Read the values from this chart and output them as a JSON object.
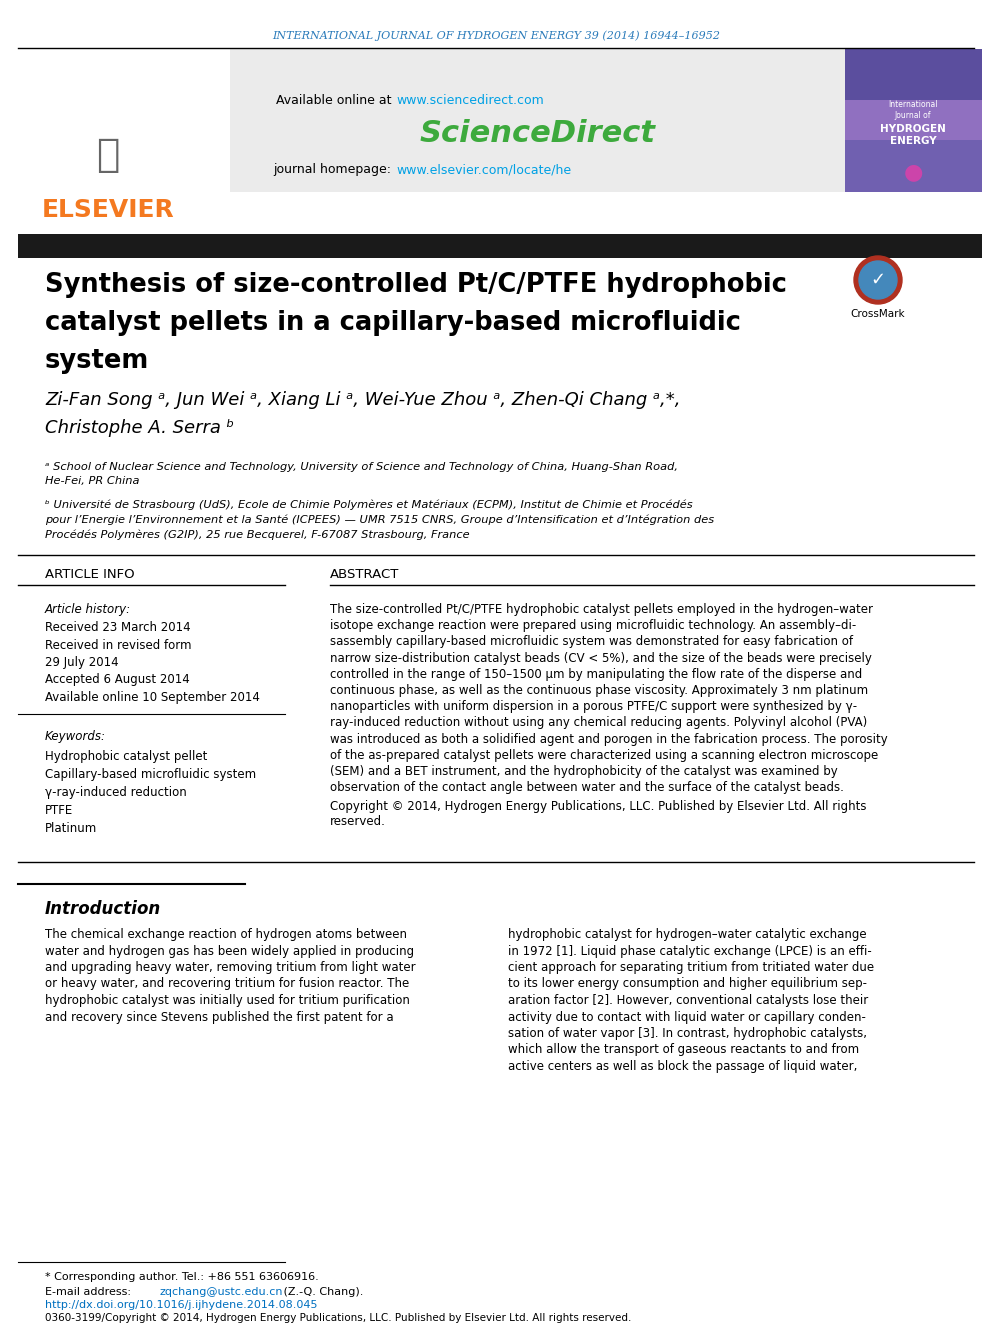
{
  "journal_header": "INTERNATIONAL JOURNAL OF HYDROGEN ENERGY 39 (2014) 16944–16952",
  "journal_header_color": "#2b7bba",
  "sciencedirect_url_color": "#00a0e4",
  "journal_homepage_url_color": "#00a0e4",
  "elsevier_color": "#f47920",
  "article_info_header": "ARTICLE INFO",
  "abstract_header": "ABSTRACT",
  "article_history_label": "Article history:",
  "received1": "Received 23 March 2014",
  "accepted": "Accepted 6 August 2014",
  "available": "Available online 10 September 2014",
  "keywords_label": "Keywords:",
  "keywords": [
    "Hydrophobic catalyst pellet",
    "Capillary-based microfluidic system",
    "γ-ray-induced reduction",
    "PTFE",
    "Platinum"
  ],
  "copyright": "Copyright © 2014, Hydrogen Energy Publications, LLC. Published by Elsevier Ltd. All rights\nreserved.",
  "intro_header": "Introduction",
  "footnote_corresponding": "* Corresponding author. Tel.: +86 551 63606916.",
  "footnote_email": "zqchang@ustc.edu.cn",
  "footnote_email_name": " (Z.-Q. Chang).",
  "footnote_doi_url": "http://dx.doi.org/10.1016/j.ijhydene.2014.08.045",
  "footnote_issn": "0360-3199/Copyright © 2014, Hydrogen Energy Publications, LLC. Published by Elsevier Ltd. All rights reserved.",
  "affiliation_a": "ᵃ School of Nuclear Science and Technology, University of Science and Technology of China, Huang-Shan Road,\nHe-Fei, PR China",
  "affiliation_b": "ᵇ Université de Strasbourg (UdS), Ecole de Chimie Polymères et Matériaux (ECPM), Institut de Chimie et Procédés\npour l’Energie l’Environnement et la Santé (ICPEES) — UMR 7515 CNRS, Groupe d’Intensification et d’Intégration des\nProcédés Polymères (G2IP), 25 rue Becquerel, F-67087 Strasbourg, France",
  "link_color": "#0070c0",
  "header_bar_color": "#1a1a1a",
  "background": "#ffffff",
  "abstract_lines": [
    "The size-controlled Pt/C/PTFE hydrophobic catalyst pellets employed in the hydrogen–water",
    "isotope exchange reaction were prepared using microfluidic technology. An assembly–di-",
    "sassembly capillary-based microfluidic system was demonstrated for easy fabrication of",
    "narrow size-distribution catalyst beads (CV < 5%), and the size of the beads were precisely",
    "controlled in the range of 150–1500 μm by manipulating the flow rate of the disperse and",
    "continuous phase, as well as the continuous phase viscosity. Approximately 3 nm platinum",
    "nanoparticles with uniform dispersion in a porous PTFE/C support were synthesized by γ-",
    "ray-induced reduction without using any chemical reducing agents. Polyvinyl alcohol (PVA)",
    "was introduced as both a solidified agent and porogen in the fabrication process. The porosity",
    "of the as-prepared catalyst pellets were characterized using a scanning electron microscope",
    "(SEM) and a BET instrument, and the hydrophobicity of the catalyst was examined by",
    "observation of the contact angle between water and the surface of the catalyst beads."
  ],
  "intro1_lines": [
    "The chemical exchange reaction of hydrogen atoms between",
    "water and hydrogen gas has been widely applied in producing",
    "and upgrading heavy water, removing tritium from light water",
    "or heavy water, and recovering tritium for fusion reactor. The",
    "hydrophobic catalyst was initially used for tritium purification",
    "and recovery since Stevens published the first patent for a"
  ],
  "intro2_lines": [
    "hydrophobic catalyst for hydrogen–water catalytic exchange",
    "in 1972 [1]. Liquid phase catalytic exchange (LPCE) is an effi-",
    "cient approach for separating tritium from tritiated water due",
    "to its lower energy consumption and higher equilibrium sep-",
    "aration factor [2]. However, conventional catalysts lose their",
    "activity due to contact with liquid water or capillary conden-",
    "sation of water vapor [3]. In contrast, hydrophobic catalysts,",
    "which allow the transport of gaseous reactants to and from",
    "active centers as well as block the passage of liquid water,"
  ],
  "title_lines": [
    "Synthesis of size-controlled Pt/C/PTFE hydrophobic",
    "catalyst pellets in a capillary-based microfluidic",
    "system"
  ],
  "authors_line1": "Zi-Fan Song ᵃ, Jun Wei ᵃ, Xiang Li ᵃ, Wei-Yue Zhou ᵃ, Zhen-Qi Chang ᵃ,*,",
  "authors_line2": "Christophe A. Serra ᵇ"
}
